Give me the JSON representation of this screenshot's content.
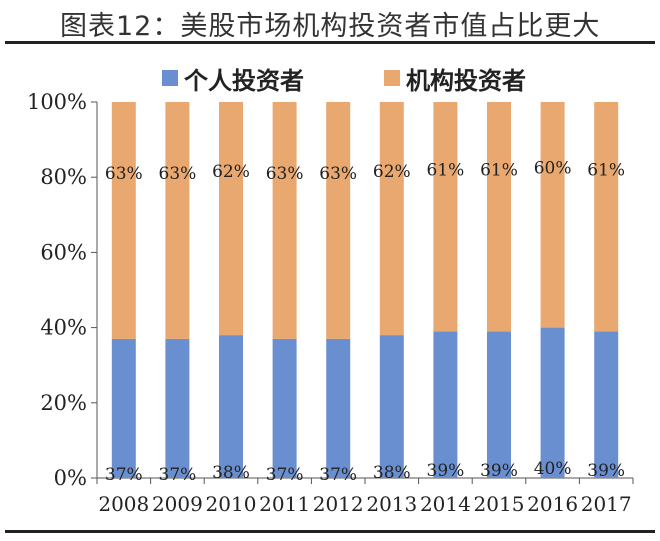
{
  "title": "图表12：美股市场机构投资者市值占比更大",
  "legend": [
    {
      "label": "个人投资者",
      "color": "#6a8fd0"
    },
    {
      "label": "机构投资者",
      "color": "#e8a86f"
    }
  ],
  "chart_data": {
    "type": "bar",
    "stacked": true,
    "categories": [
      "2008",
      "2009",
      "2010",
      "2011",
      "2012",
      "2013",
      "2014",
      "2015",
      "2016",
      "2017"
    ],
    "series": [
      {
        "name": "个人投资者",
        "values": [
          37,
          37,
          38,
          37,
          37,
          38,
          39,
          39,
          40,
          39
        ],
        "labels": [
          "37%",
          "37%",
          "38%",
          "37%",
          "37%",
          "38%",
          "39%",
          "39%",
          "40%",
          "39%"
        ],
        "color": "#6a8fd0"
      },
      {
        "name": "机构投资者",
        "values": [
          63,
          63,
          62,
          63,
          63,
          62,
          61,
          61,
          60,
          61
        ],
        "labels": [
          "63%",
          "63%",
          "62%",
          "63%",
          "63%",
          "62%",
          "61%",
          "61%",
          "60%",
          "61%"
        ],
        "color": "#e8a86f"
      }
    ],
    "ylim": [
      0,
      100
    ],
    "yticks": [
      0,
      20,
      40,
      60,
      80,
      100
    ],
    "ytick_labels": [
      "0%",
      "20%",
      "40%",
      "60%",
      "80%",
      "100%"
    ],
    "grid": false,
    "legend_position": "top"
  }
}
